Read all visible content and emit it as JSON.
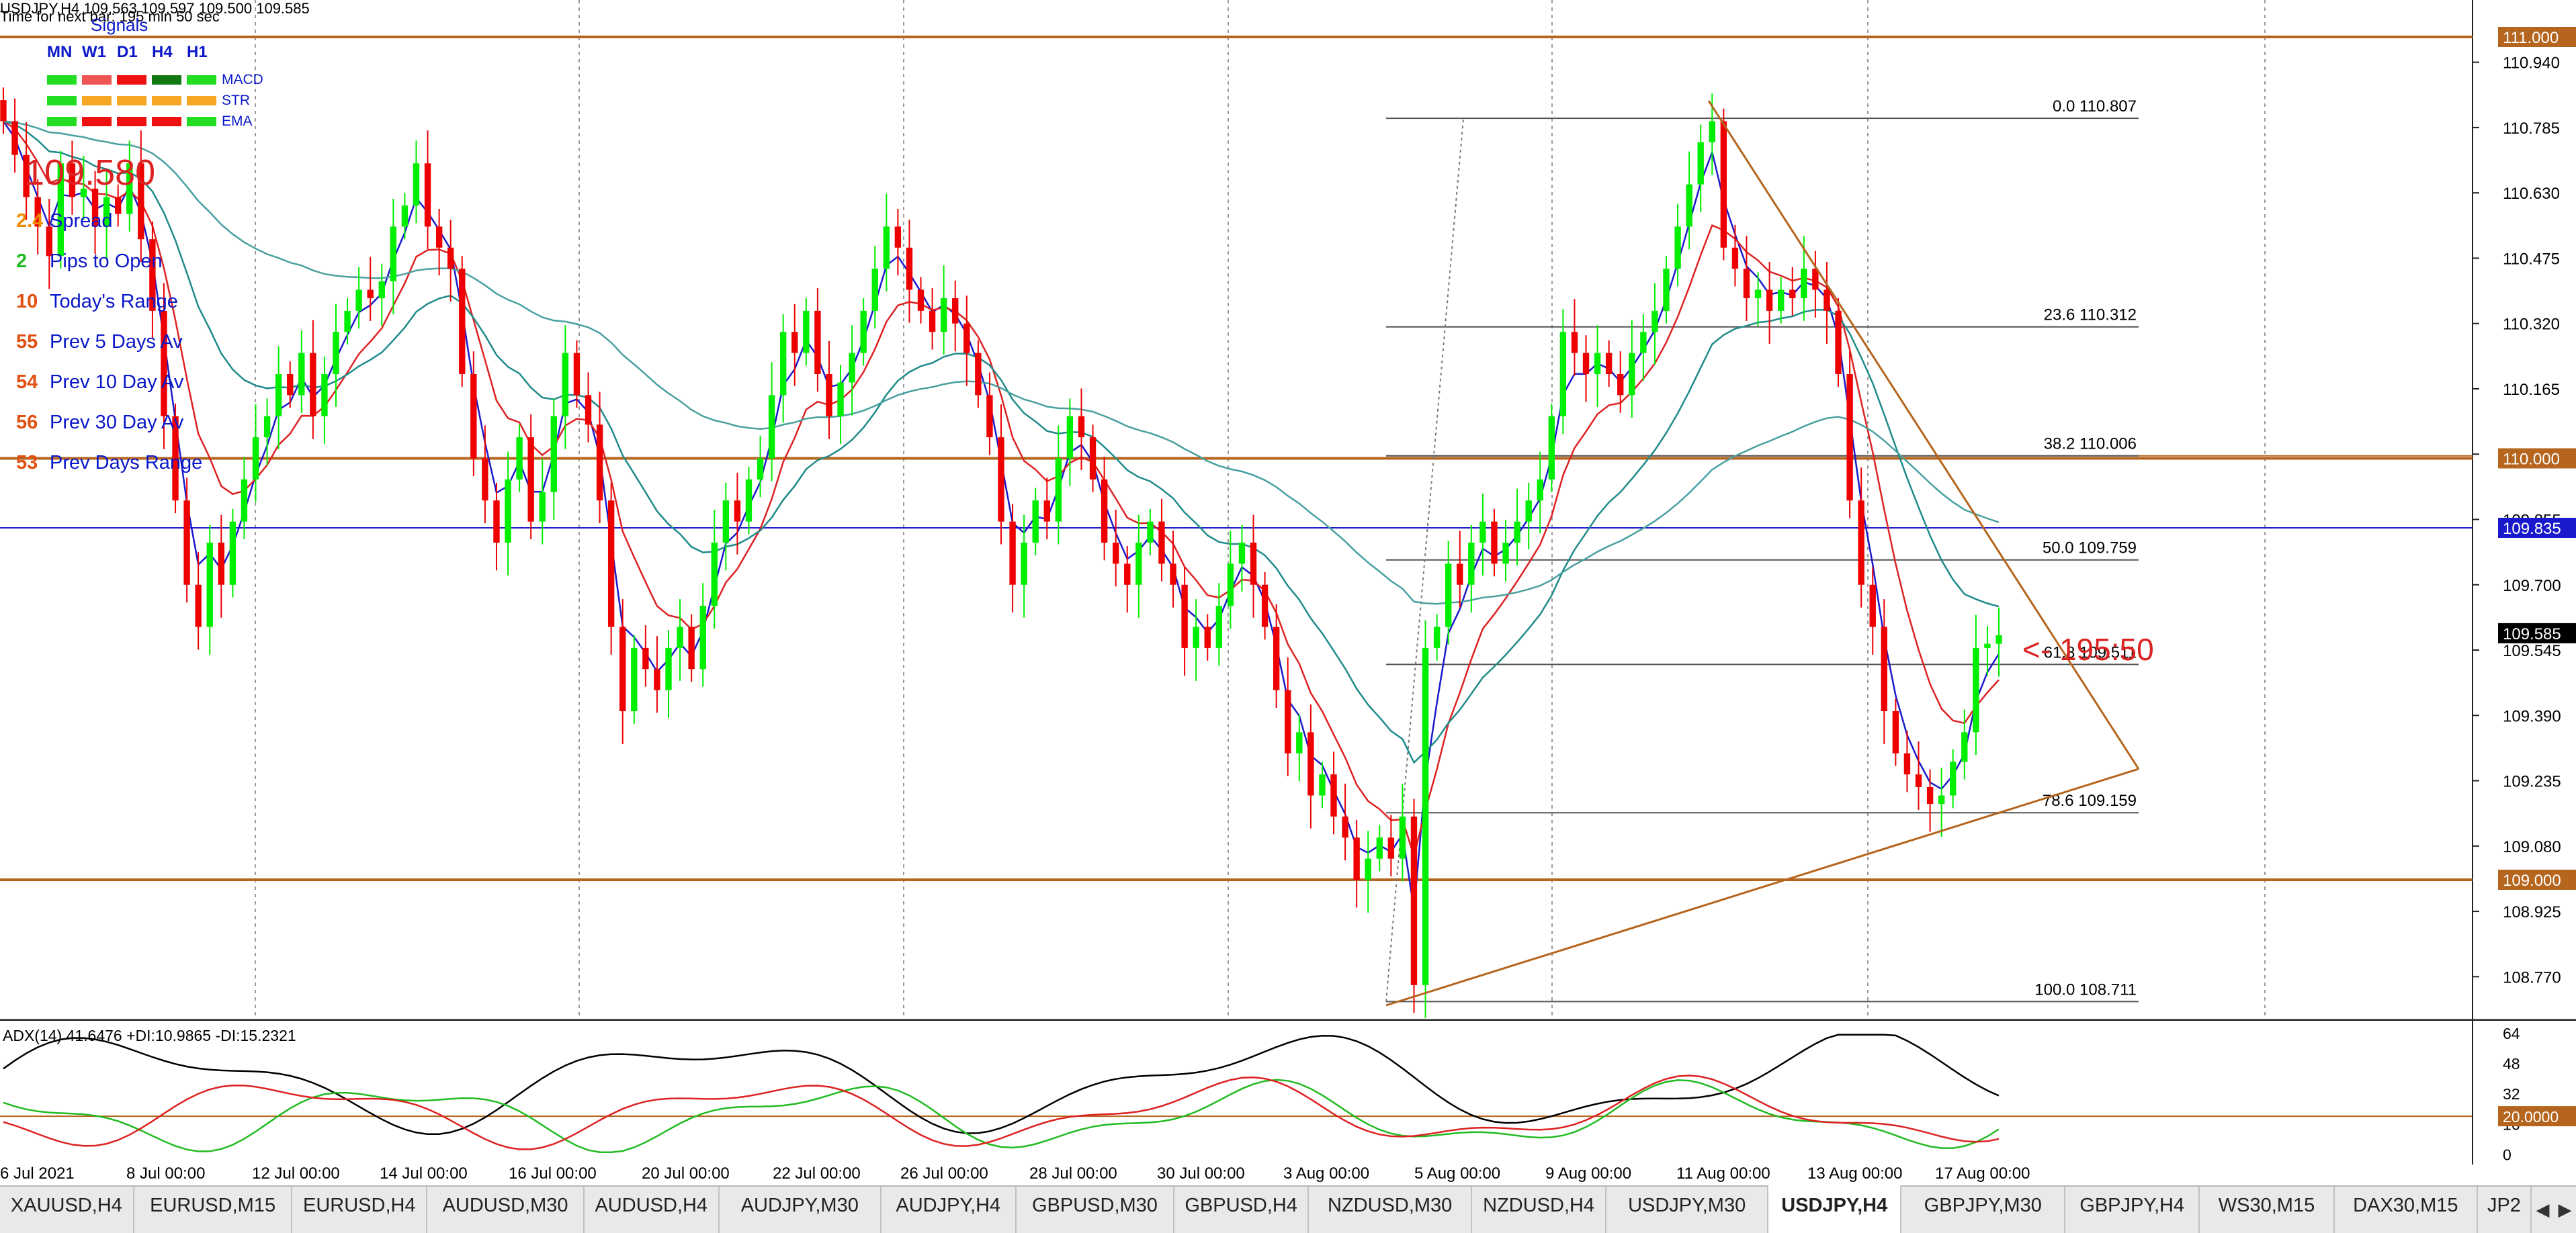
{
  "header": {
    "symbol_line": "USDJPY,H4  109.563 109.597 109.500 109.585",
    "timer_line": "Time for next bar: 195 min 50 sec"
  },
  "signals": {
    "title": "Signals",
    "timeframes": [
      "MN",
      "W1",
      "D1",
      "H4",
      "H1"
    ],
    "rows": [
      {
        "label": "MACD",
        "colors": [
          "#22dd22",
          "#ee5555",
          "#ee1111",
          "#117711",
          "#22dd22"
        ]
      },
      {
        "label": "STR",
        "colors": [
          "#22dd22",
          "#f5a623",
          "#f5a623",
          "#f5a623",
          "#f5a623"
        ]
      },
      {
        "label": "EMA",
        "colors": [
          "#22dd22",
          "#ee1111",
          "#ee1111",
          "#ee1111",
          "#22dd22"
        ]
      }
    ]
  },
  "big_price": "109.580",
  "stats": [
    {
      "value": "2.4",
      "label": "Spread",
      "color": "#f08a00"
    },
    {
      "value": "2",
      "label": "Pips to Open",
      "color": "#22bb22"
    },
    {
      "value": "10",
      "label": "Today's Range",
      "color": "#e05010"
    },
    {
      "value": "55",
      "label": "Prev 5 Days Av",
      "color": "#e05010"
    },
    {
      "value": "54",
      "label": "Prev 10 Day Av",
      "color": "#e05010"
    },
    {
      "value": "56",
      "label": "Prev 30 Day Av",
      "color": "#e05010"
    },
    {
      "value": "53",
      "label": "Prev Days Range",
      "color": "#e05010"
    }
  ],
  "countdown_label": "<- 195:50",
  "price_axis": {
    "ticks": [
      "110.940",
      "110.785",
      "110.630",
      "110.475",
      "110.320",
      "110.165",
      "110.010",
      "109.855",
      "109.700",
      "109.545",
      "109.390",
      "109.235",
      "109.080",
      "108.925",
      "108.770"
    ],
    "markers": [
      {
        "label": "111.000",
        "bg": "#b5651d",
        "fg": "#ffffff"
      },
      {
        "label": "110.000",
        "bg": "#b5651d",
        "fg": "#ffffff"
      },
      {
        "label": "109.835",
        "bg": "#1a1acc",
        "fg": "#ffffff"
      },
      {
        "label": "109.585",
        "bg": "#000000",
        "fg": "#ffffff"
      },
      {
        "label": "109.000",
        "bg": "#b5651d",
        "fg": "#ffffff"
      }
    ]
  },
  "fibonacci": [
    {
      "level": "0.0",
      "price": "110.807"
    },
    {
      "level": "23.6",
      "price": "110.312"
    },
    {
      "level": "38.2",
      "price": "110.006"
    },
    {
      "level": "50.0",
      "price": "109.759"
    },
    {
      "level": "61.8",
      "price": "109.511"
    },
    {
      "level": "78.6",
      "price": "109.159"
    },
    {
      "level": "100.0",
      "price": "108.711"
    }
  ],
  "time_axis": [
    "6 Jul 2021",
    "8 Jul 00:00",
    "12 Jul 00:00",
    "14 Jul 00:00",
    "16 Jul 00:00",
    "20 Jul 00:00",
    "22 Jul 00:00",
    "26 Jul 00:00",
    "28 Jul 00:00",
    "30 Jul 00:00",
    "3 Aug 00:00",
    "5 Aug 00:00",
    "9 Aug 00:00",
    "11 Aug 00:00",
    "13 Aug 00:00",
    "17 Aug 00:00"
  ],
  "adx": {
    "label": "ADX(14) 41.6476 +DI:10.9865 -DI:15.2321",
    "axis_ticks": [
      "64",
      "48",
      "32",
      "16",
      "0"
    ],
    "level_marker": "20.0000"
  },
  "tabs": [
    {
      "label": "XAUUSD,H4",
      "active": false
    },
    {
      "label": "EURUSD,M15",
      "active": false
    },
    {
      "label": "EURUSD,H4",
      "active": false
    },
    {
      "label": "AUDUSD,M30",
      "active": false
    },
    {
      "label": "AUDUSD,H4",
      "active": false
    },
    {
      "label": "AUDJPY,M30",
      "active": false
    },
    {
      "label": "AUDJPY,H4",
      "active": false
    },
    {
      "label": "GBPUSD,M30",
      "active": false
    },
    {
      "label": "GBPUSD,H4",
      "active": false
    },
    {
      "label": "NZDUSD,M30",
      "active": false
    },
    {
      "label": "NZDUSD,H4",
      "active": false
    },
    {
      "label": "USDJPY,M30",
      "active": false
    },
    {
      "label": "USDJPY,H4",
      "active": true
    },
    {
      "label": "GBPJPY,M30",
      "active": false
    },
    {
      "label": "GBPJPY,H4",
      "active": false
    },
    {
      "label": "WS30,M15",
      "active": false
    },
    {
      "label": "DAX30,M15",
      "active": false
    },
    {
      "label": "JP2",
      "active": false
    }
  ],
  "tab_scroll": {
    "left": "◀",
    "right": "▶"
  },
  "colors": {
    "bull": "#00ee00",
    "bear": "#ee0000",
    "level_line": "#b5651d",
    "fast_ma": "#1a1acc",
    "mid_ma": "#dd2222",
    "slow_ma": "#1f8a8a",
    "long_ma": "#4aa0a0",
    "adx": "#000000",
    "plus_di": "#22bb22",
    "minus_di": "#dd2222"
  }
}
